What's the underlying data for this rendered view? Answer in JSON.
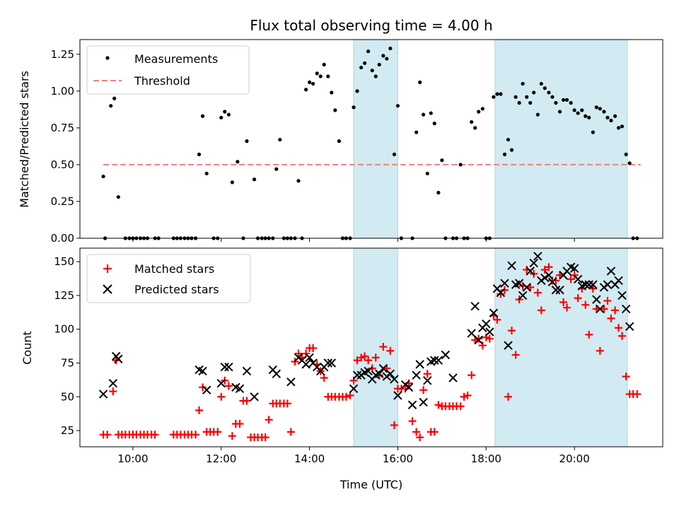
{
  "chart_data": [
    {
      "type": "scatter",
      "title": "Flux total observing time = 4.00 h",
      "xlabel": "",
      "ylabel": "Matched/Predicted stars",
      "xlim_hours": [
        8.8,
        22.0
      ],
      "ylim": [
        0,
        1.35
      ],
      "yticks": [
        0.0,
        0.25,
        0.5,
        0.75,
        1.0,
        1.25
      ],
      "ytick_labels": [
        "0.00",
        "0.25",
        "0.50",
        "0.75",
        "1.00",
        "1.25"
      ],
      "shaded_spans": [
        [
          15.0,
          16.0
        ],
        [
          18.2,
          21.2
        ]
      ],
      "legend_position": "top-left",
      "threshold": {
        "name": "Threshold",
        "value": 0.5,
        "x_range": [
          9.33,
          21.5
        ],
        "color": "#f08080"
      },
      "series": [
        {
          "name": "Measurements",
          "color": "#000000",
          "x": [
            9.33,
            9.37,
            9.5,
            9.58,
            9.67,
            9.83,
            9.92,
            10.0,
            10.08,
            10.17,
            10.25,
            10.33,
            10.5,
            10.58,
            10.92,
            11.0,
            11.08,
            11.17,
            11.25,
            11.33,
            11.42,
            11.5,
            11.58,
            11.67,
            11.83,
            11.92,
            12.0,
            12.08,
            12.17,
            12.25,
            12.37,
            12.5,
            12.58,
            12.75,
            12.83,
            12.92,
            13.0,
            13.08,
            13.17,
            13.25,
            13.33,
            13.42,
            13.5,
            13.58,
            13.67,
            13.75,
            13.83,
            13.92,
            14.0,
            14.08,
            14.17,
            14.25,
            14.33,
            14.42,
            14.5,
            14.58,
            14.67,
            14.75,
            14.83,
            14.92,
            15.0,
            15.08,
            15.17,
            15.25,
            15.33,
            15.42,
            15.5,
            15.58,
            15.67,
            15.75,
            15.83,
            15.92,
            16.0,
            16.08,
            16.33,
            16.42,
            16.5,
            16.58,
            16.67,
            16.75,
            16.83,
            16.92,
            17.0,
            17.08,
            17.25,
            17.33,
            17.42,
            17.5,
            17.58,
            17.67,
            17.75,
            17.83,
            17.92,
            18.0,
            18.08,
            18.17,
            18.25,
            18.33,
            18.42,
            18.5,
            18.58,
            18.67,
            18.75,
            18.83,
            18.92,
            19.0,
            19.08,
            19.17,
            19.25,
            19.33,
            19.42,
            19.5,
            19.58,
            19.67,
            19.75,
            19.83,
            19.92,
            20.0,
            20.08,
            20.17,
            20.25,
            20.33,
            20.42,
            20.5,
            20.58,
            20.67,
            20.75,
            20.83,
            20.92,
            21.0,
            21.08,
            21.17,
            21.25,
            21.33,
            21.42
          ],
          "values": [
            0.42,
            0.0,
            0.9,
            0.95,
            0.28,
            0.0,
            0.0,
            0.0,
            0.0,
            0.0,
            0.0,
            0.0,
            0.0,
            0.0,
            0.0,
            0.0,
            0.0,
            0.0,
            0.0,
            0.0,
            0.0,
            0.57,
            0.83,
            0.44,
            0.0,
            0.0,
            0.82,
            0.86,
            0.84,
            0.38,
            0.52,
            0.0,
            0.66,
            0.4,
            0.0,
            0.0,
            0.0,
            0.0,
            0.0,
            0.47,
            0.67,
            0.0,
            0.0,
            0.0,
            0.0,
            0.39,
            0.0,
            1.01,
            1.06,
            1.05,
            1.12,
            1.1,
            1.18,
            1.1,
            0.99,
            0.87,
            0.66,
            0.0,
            0.0,
            0.0,
            0.89,
            1.0,
            1.16,
            1.19,
            1.27,
            1.14,
            1.1,
            1.18,
            1.24,
            1.22,
            1.29,
            0.57,
            0.9,
            0.0,
            0.0,
            0.72,
            1.06,
            0.84,
            0.44,
            0.85,
            0.78,
            0.31,
            0.53,
            0.0,
            0.0,
            0.0,
            0.5,
            0.0,
            0.0,
            0.79,
            0.75,
            0.86,
            0.88,
            0.0,
            0.0,
            0.96,
            0.98,
            0.98,
            0.57,
            0.67,
            0.6,
            0.96,
            0.92,
            1.05,
            0.96,
            0.92,
            0.99,
            0.84,
            1.05,
            1.02,
            0.99,
            0.96,
            0.92,
            0.86,
            0.94,
            0.94,
            0.92,
            0.87,
            0.85,
            0.87,
            0.83,
            0.82,
            0.72,
            0.89,
            0.88,
            0.86,
            0.82,
            0.8,
            0.83,
            0.75,
            0.76,
            0.57,
            0.51,
            0.0,
            0.0
          ]
        }
      ]
    },
    {
      "type": "scatter",
      "title": "",
      "xlabel": "Time (UTC)",
      "ylabel": "Count",
      "xlim_hours": [
        8.8,
        22.0
      ],
      "ylim": [
        13,
        160
      ],
      "xticks": [
        10,
        12,
        14,
        16,
        18,
        20
      ],
      "xtick_labels": [
        "10:00",
        "12:00",
        "14:00",
        "16:00",
        "18:00",
        "20:00"
      ],
      "yticks": [
        25,
        50,
        75,
        100,
        125,
        150
      ],
      "ytick_labels": [
        "25",
        "50",
        "75",
        "100",
        "125",
        "150"
      ],
      "shaded_spans": [
        [
          15.0,
          16.0
        ],
        [
          18.2,
          21.2
        ]
      ],
      "legend_position": "top-left",
      "series": [
        {
          "name": "Matched stars",
          "marker": "plus",
          "color": "#ff0000",
          "x": [
            9.33,
            9.42,
            9.55,
            9.62,
            9.67,
            9.75,
            9.83,
            9.92,
            10.0,
            10.08,
            10.17,
            10.25,
            10.33,
            10.42,
            10.5,
            10.92,
            11.0,
            11.08,
            11.17,
            11.25,
            11.33,
            11.42,
            11.5,
            11.58,
            11.67,
            11.75,
            11.83,
            11.92,
            12.0,
            12.08,
            12.17,
            12.25,
            12.33,
            12.42,
            12.5,
            12.58,
            12.67,
            12.75,
            12.83,
            12.92,
            13.0,
            13.08,
            13.17,
            13.25,
            13.33,
            13.42,
            13.5,
            13.58,
            13.67,
            13.75,
            13.83,
            13.92,
            14.0,
            14.08,
            14.17,
            14.25,
            14.33,
            14.42,
            14.5,
            14.58,
            14.67,
            14.75,
            14.83,
            14.92,
            15.0,
            15.08,
            15.17,
            15.25,
            15.33,
            15.42,
            15.5,
            15.58,
            15.67,
            15.75,
            15.83,
            15.92,
            16.0,
            16.08,
            16.17,
            16.25,
            16.33,
            16.42,
            16.5,
            16.58,
            16.67,
            16.75,
            16.83,
            16.92,
            17.0,
            17.08,
            17.17,
            17.25,
            17.33,
            17.42,
            17.5,
            17.58,
            17.67,
            17.75,
            17.83,
            17.92,
            18.0,
            18.08,
            18.17,
            18.25,
            18.33,
            18.42,
            18.5,
            18.58,
            18.67,
            18.75,
            18.83,
            18.92,
            19.0,
            19.08,
            19.17,
            19.25,
            19.33,
            19.42,
            19.5,
            19.58,
            19.67,
            19.75,
            19.83,
            19.92,
            20.0,
            20.08,
            20.17,
            20.25,
            20.33,
            20.42,
            20.5,
            20.58,
            20.67,
            20.75,
            20.83,
            20.92,
            21.0,
            21.08,
            21.17,
            21.25,
            21.33,
            21.42
          ],
          "values": [
            22,
            22,
            54,
            77,
            22,
            22,
            22,
            22,
            22,
            22,
            22,
            22,
            22,
            22,
            22,
            22,
            22,
            22,
            22,
            22,
            22,
            22,
            40,
            57,
            24,
            24,
            24,
            24,
            50,
            62,
            58,
            21,
            30,
            30,
            47,
            47,
            20,
            20,
            20,
            20,
            20,
            33,
            45,
            45,
            45,
            45,
            45,
            24,
            76,
            82,
            79,
            82,
            86,
            86,
            74,
            69,
            64,
            50,
            50,
            50,
            50,
            50,
            50,
            51,
            62,
            77,
            79,
            80,
            77,
            71,
            79,
            66,
            87,
            71,
            84,
            29,
            56,
            56,
            56,
            60,
            32,
            24,
            20,
            55,
            67,
            24,
            24,
            44,
            43,
            43,
            43,
            43,
            43,
            43,
            50,
            51,
            66,
            92,
            93,
            88,
            94,
            93,
            110,
            107,
            126,
            129,
            50,
            99,
            81,
            122,
            132,
            144,
            131,
            141,
            127,
            114,
            144,
            146,
            136,
            136,
            140,
            120,
            116,
            137,
            140,
            123,
            130,
            118,
            96,
            130,
            115,
            84,
            115,
            121,
            108,
            114,
            101,
            95,
            65,
            52,
            52,
            52
          ],
          "lowest_value": 20
        },
        {
          "name": "Predicted stars",
          "marker": "x",
          "color": "#000000",
          "x": [
            9.33,
            9.55,
            9.62,
            9.67,
            11.5,
            11.58,
            11.67,
            12.0,
            12.08,
            12.17,
            12.33,
            12.42,
            12.58,
            12.75,
            13.17,
            13.25,
            13.58,
            13.75,
            13.83,
            13.92,
            14.0,
            14.08,
            14.17,
            14.25,
            14.33,
            14.42,
            14.5,
            15.0,
            15.08,
            15.17,
            15.25,
            15.33,
            15.42,
            15.5,
            15.58,
            15.67,
            15.75,
            15.83,
            15.92,
            16.0,
            16.17,
            16.25,
            16.33,
            16.42,
            16.5,
            16.58,
            16.67,
            16.75,
            16.83,
            16.92,
            17.08,
            17.25,
            17.67,
            17.75,
            17.83,
            17.92,
            18.0,
            18.08,
            18.17,
            18.25,
            18.33,
            18.42,
            18.5,
            18.58,
            18.67,
            18.75,
            18.83,
            18.92,
            19.0,
            19.08,
            19.17,
            19.25,
            19.33,
            19.42,
            19.5,
            19.58,
            19.67,
            19.75,
            19.83,
            19.92,
            20.0,
            20.08,
            20.17,
            20.25,
            20.33,
            20.42,
            20.5,
            20.58,
            20.67,
            20.75,
            20.83,
            20.92,
            21.0,
            21.08,
            21.17,
            21.25
          ],
          "values": [
            52,
            60,
            80,
            78,
            70,
            69,
            55,
            60,
            72,
            72,
            57,
            56,
            69,
            50,
            70,
            67,
            61,
            79,
            77,
            74,
            79,
            75,
            72,
            69,
            72,
            75,
            75,
            56,
            66,
            66,
            68,
            69,
            63,
            66,
            67,
            71,
            65,
            67,
            63,
            51,
            59,
            57,
            44,
            66,
            74,
            46,
            62,
            76,
            77,
            77,
            81,
            64,
            97,
            117,
            92,
            101,
            104,
            98,
            112,
            130,
            127,
            134,
            88,
            147,
            133,
            134,
            125,
            131,
            143,
            149,
            154,
            136,
            138,
            140,
            135,
            129,
            129,
            140,
            143,
            146,
            145,
            137,
            132,
            133,
            133,
            133,
            122,
            115,
            131,
            133,
            143,
            133,
            136,
            125,
            115,
            102
          ]
        }
      ]
    }
  ],
  "legend": {
    "top": [
      {
        "label": "Measurements"
      },
      {
        "label": "Threshold"
      }
    ],
    "bottom": [
      {
        "label": "Matched stars"
      },
      {
        "label": "Predicted stars"
      }
    ]
  },
  "colors": {
    "shade": "#add8e6",
    "threshold": "#f08080",
    "matched": "#ff0000",
    "predicted": "#000000"
  }
}
